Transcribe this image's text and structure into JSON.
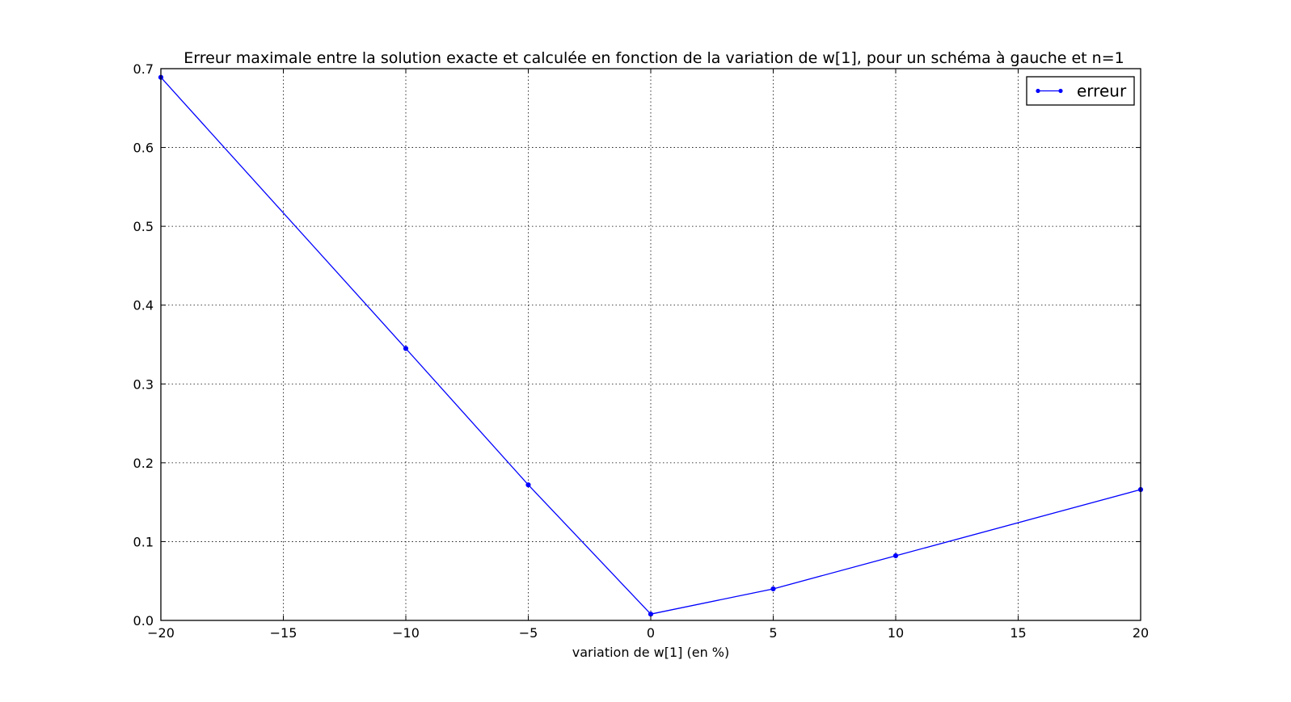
{
  "chart_data": {
    "type": "line",
    "title": "Erreur maximale entre la solution exacte et calculée en fonction de la variation de w[1], pour un schéma à gauche et n=1",
    "xlabel": "variation de w[1] (en %)",
    "ylabel": "",
    "xlim": [
      -20,
      20
    ],
    "ylim": [
      0,
      0.7
    ],
    "xticks": [
      -20,
      -15,
      -10,
      -5,
      0,
      5,
      10,
      15,
      20
    ],
    "xtick_labels": [
      "−20",
      "−15",
      "−10",
      "−5",
      "0",
      "5",
      "10",
      "15",
      "20"
    ],
    "yticks": [
      0.0,
      0.1,
      0.2,
      0.3,
      0.4,
      0.5,
      0.6,
      0.7
    ],
    "ytick_labels": [
      "0.0",
      "0.1",
      "0.2",
      "0.3",
      "0.4",
      "0.5",
      "0.6",
      "0.7"
    ],
    "grid": true,
    "legend_position": "top-right",
    "series": [
      {
        "name": "erreur",
        "color": "#0000ff",
        "marker": "dot",
        "x": [
          -20,
          -10,
          -5,
          0,
          5,
          10,
          20
        ],
        "y": [
          0.689,
          0.345,
          0.172,
          0.008,
          0.04,
          0.082,
          0.166
        ]
      }
    ]
  }
}
